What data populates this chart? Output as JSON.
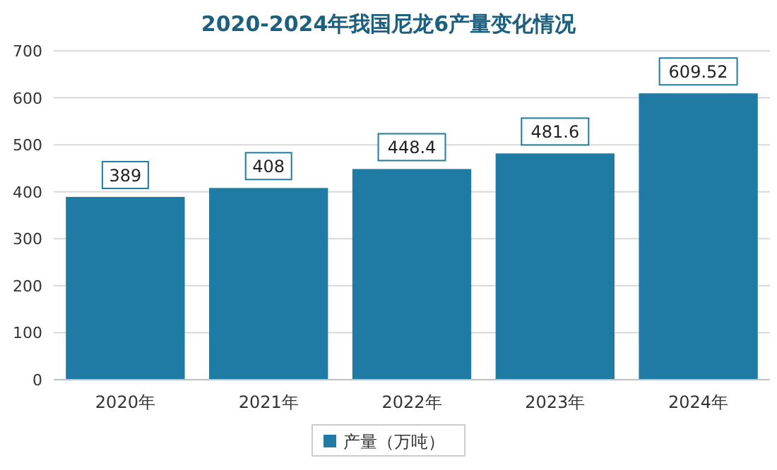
{
  "chart_data": {
    "type": "bar",
    "title": "2020-2024年我国尼龙6产量变化情况",
    "categories": [
      "2020年",
      "2021年",
      "2022年",
      "2023年",
      "2024年"
    ],
    "series": [
      {
        "name": "产量（万吨）",
        "color": "#1f7ba3",
        "values": [
          389,
          408,
          448.4,
          481.6,
          609.52
        ]
      }
    ],
    "ylim": [
      0,
      700
    ],
    "yticks": [
      0,
      100,
      200,
      300,
      400,
      500,
      600,
      700
    ],
    "grid": "y",
    "legend": "bottom",
    "data_labels": true
  }
}
